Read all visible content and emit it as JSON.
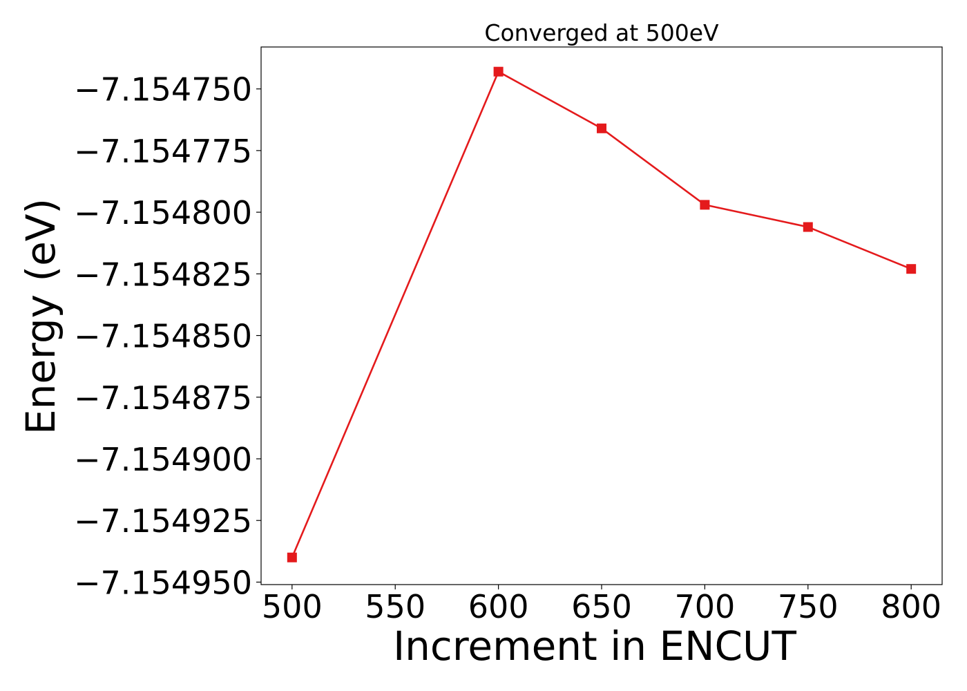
{
  "chart_data": {
    "type": "line",
    "title": "Converged at 500eV",
    "xlabel": "Increment in ENCUT",
    "ylabel": "Energy (eV)",
    "x": [
      500,
      600,
      650,
      700,
      750,
      800
    ],
    "series": [
      {
        "values": [
          -7.15494,
          -7.154743,
          -7.154766,
          -7.154797,
          -7.154806,
          -7.154823
        ],
        "color": "#e41a1c",
        "marker": "square"
      }
    ],
    "xlim": [
      485,
      815
    ],
    "ylim": [
      -7.154951,
      -7.154733
    ],
    "xticks": [
      500,
      550,
      600,
      650,
      700,
      750,
      800
    ],
    "xtick_labels": [
      "500",
      "550",
      "600",
      "650",
      "700",
      "750",
      "800"
    ],
    "yticks": [
      -7.15475,
      -7.154775,
      -7.1548,
      -7.154825,
      -7.15485,
      -7.154875,
      -7.1549,
      -7.154925,
      -7.15495
    ],
    "ytick_labels": [
      "−7.154750",
      "−7.154775",
      "−7.154800",
      "−7.154825",
      "−7.154850",
      "−7.154875",
      "−7.154900",
      "−7.154925",
      "−7.154950"
    ],
    "grid": false,
    "legend": "none"
  }
}
